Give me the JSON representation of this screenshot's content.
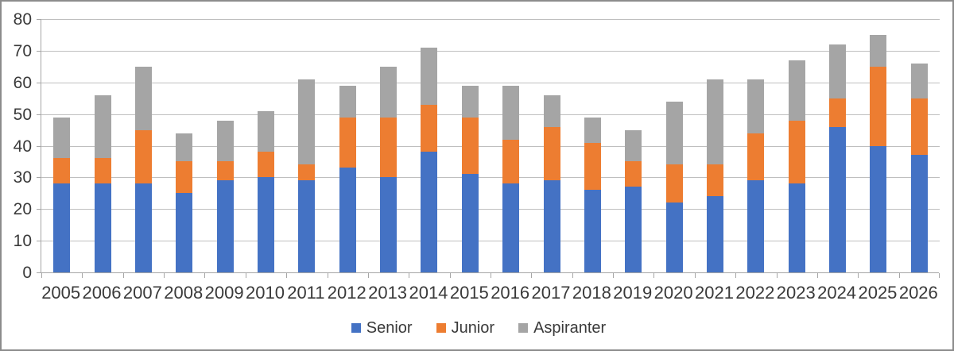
{
  "chart_data": {
    "type": "bar",
    "stacked": true,
    "title": "",
    "categories": [
      "2005",
      "2006",
      "2007",
      "2008",
      "2009",
      "2010",
      "2011",
      "2012",
      "2013",
      "2014",
      "2015",
      "2016",
      "2017",
      "2018",
      "2019",
      "2020",
      "2021",
      "2022",
      "2023",
      "2024",
      "2025",
      "2026"
    ],
    "series": [
      {
        "name": "Senior",
        "color": "#4472C4",
        "values": [
          28,
          28,
          28,
          25,
          29,
          30,
          29,
          33,
          30,
          38,
          31,
          28,
          29,
          26,
          27,
          22,
          24,
          29,
          28,
          46,
          40,
          37
        ]
      },
      {
        "name": "Junior",
        "color": "#ED7D31",
        "values": [
          8,
          8,
          17,
          10,
          6,
          8,
          5,
          16,
          19,
          15,
          18,
          14,
          17,
          15,
          8,
          12,
          10,
          15,
          20,
          9,
          25,
          18
        ]
      },
      {
        "name": "Aspiranter",
        "color": "#A5A5A5",
        "values": [
          13,
          20,
          20,
          9,
          13,
          13,
          27,
          10,
          16,
          18,
          10,
          17,
          10,
          8,
          10,
          20,
          27,
          17,
          19,
          17,
          10,
          11
        ]
      }
    ],
    "totals": [
      49,
      56,
      65,
      44,
      48,
      51,
      61,
      59,
      65,
      71,
      59,
      59,
      56,
      49,
      45,
      54,
      61,
      61,
      67,
      72,
      75,
      66
    ],
    "xlabel": "",
    "ylabel": "",
    "ylim": [
      0,
      80
    ],
    "ytick_interval": 10,
    "yticks": [
      "0",
      "10",
      "20",
      "30",
      "40",
      "50",
      "60",
      "70",
      "80"
    ],
    "grid": true,
    "legend_position": "bottom",
    "legend": [
      "Senior",
      "Junior",
      "Aspiranter"
    ]
  },
  "colors": {
    "background": "#FFFFFF",
    "frame_border": "#8C8C8C",
    "gridline": "#BFBFBF",
    "axis_line": "#A6A6A6",
    "label_text": "#3A3A3A"
  }
}
